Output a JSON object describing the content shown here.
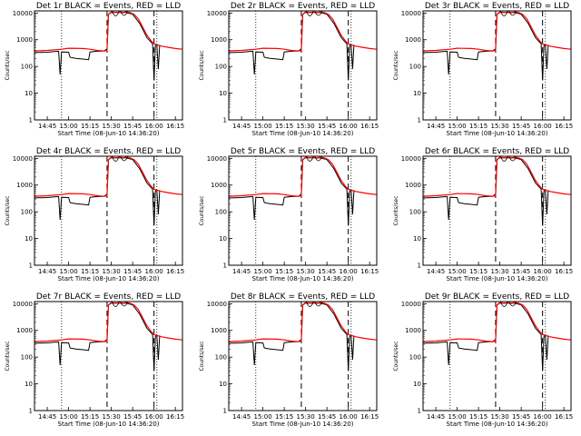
{
  "figure": {
    "layout": "3x3 grid of detector light curves"
  },
  "chart_data": [
    {
      "type": "line",
      "detector": "1r",
      "title": "Det 1r BLACK = Events, RED = LLD",
      "xlabel": "Start Time (08-Jun-10 14:36:20)",
      "ylabel": "Counts/sec",
      "x_ticks": [
        "14:45",
        "15:00",
        "15:15",
        "15:30",
        "15:45",
        "16:00",
        "16:15"
      ],
      "y_ticks": [
        "1",
        "10",
        "100",
        "1000",
        "10000"
      ],
      "y_scale": "log",
      "ylim": [
        1,
        12000
      ],
      "xlim": [
        "14:36",
        "16:20"
      ],
      "series": [
        {
          "name": "Events",
          "color": "#000000"
        },
        {
          "name": "LLD",
          "color": "#ff0000"
        }
      ]
    },
    {
      "type": "line",
      "detector": "2r",
      "title": "Det 2r BLACK = Events, RED = LLD",
      "xlabel": "Start Time (08-Jun-10 14:36:20)",
      "ylabel": "Counts/sec",
      "x_ticks": [
        "14:45",
        "15:00",
        "15:15",
        "15:30",
        "15:45",
        "16:00",
        "16:15"
      ],
      "y_ticks": [
        "1",
        "10",
        "100",
        "1000",
        "10000"
      ],
      "y_scale": "log",
      "ylim": [
        1,
        12000
      ],
      "xlim": [
        "14:36",
        "16:20"
      ],
      "series": [
        {
          "name": "Events",
          "color": "#000000"
        },
        {
          "name": "LLD",
          "color": "#ff0000"
        }
      ]
    },
    {
      "type": "line",
      "detector": "3r",
      "title": "Det 3r BLACK = Events, RED = LLD",
      "xlabel": "Start Time (08-Jun-10 14:36:20)",
      "ylabel": "Counts/sec",
      "x_ticks": [
        "14:45",
        "15:00",
        "15:15",
        "15:30",
        "15:45",
        "16:00",
        "16:15"
      ],
      "y_ticks": [
        "1",
        "10",
        "100",
        "1000",
        "10000"
      ],
      "y_scale": "log",
      "ylim": [
        1,
        12000
      ],
      "xlim": [
        "14:36",
        "16:20"
      ],
      "series": [
        {
          "name": "Events",
          "color": "#000000"
        },
        {
          "name": "LLD",
          "color": "#ff0000"
        }
      ]
    },
    {
      "type": "line",
      "detector": "4r",
      "title": "Det 4r BLACK = Events, RED = LLD",
      "xlabel": "Start Time (08-Jun-10 14:36:20)",
      "ylabel": "Counts/sec",
      "x_ticks": [
        "14:45",
        "15:00",
        "15:15",
        "15:30",
        "15:45",
        "16:00",
        "16:15"
      ],
      "y_ticks": [
        "1",
        "10",
        "100",
        "1000",
        "10000"
      ],
      "y_scale": "log",
      "ylim": [
        1,
        12000
      ],
      "xlim": [
        "14:36",
        "16:20"
      ],
      "series": [
        {
          "name": "Events",
          "color": "#000000"
        },
        {
          "name": "LLD",
          "color": "#ff0000"
        }
      ]
    },
    {
      "type": "line",
      "detector": "5r",
      "title": "Det 5r BLACK = Events, RED = LLD",
      "xlabel": "Start Time (08-Jun-10 14:36:20)",
      "ylabel": "Counts/sec",
      "x_ticks": [
        "14:45",
        "15:00",
        "15:15",
        "15:30",
        "15:45",
        "16:00",
        "16:15"
      ],
      "y_ticks": [
        "1",
        "10",
        "100",
        "1000",
        "10000"
      ],
      "y_scale": "log",
      "ylim": [
        1,
        12000
      ],
      "xlim": [
        "14:36",
        "16:20"
      ],
      "series": [
        {
          "name": "Events",
          "color": "#000000"
        },
        {
          "name": "LLD",
          "color": "#ff0000"
        }
      ]
    },
    {
      "type": "line",
      "detector": "6r",
      "title": "Det 6r BLACK = Events, RED = LLD",
      "xlabel": "Start Time (08-Jun-10 14:36:20)",
      "ylabel": "Counts/sec",
      "x_ticks": [
        "14:45",
        "15:00",
        "15:15",
        "15:30",
        "15:45",
        "16:00",
        "16:15"
      ],
      "y_ticks": [
        "1",
        "10",
        "100",
        "1000",
        "10000"
      ],
      "y_scale": "log",
      "ylim": [
        1,
        12000
      ],
      "xlim": [
        "14:36",
        "16:20"
      ],
      "series": [
        {
          "name": "Events",
          "color": "#000000"
        },
        {
          "name": "LLD",
          "color": "#ff0000"
        }
      ]
    },
    {
      "type": "line",
      "detector": "7r",
      "title": "Det 7r BLACK = Events, RED = LLD",
      "xlabel": "Start Time (08-Jun-10 14:36:20)",
      "ylabel": "Counts/sec",
      "x_ticks": [
        "14:45",
        "15:00",
        "15:15",
        "15:30",
        "15:45",
        "16:00",
        "16:15"
      ],
      "y_ticks": [
        "1",
        "10",
        "100",
        "1000",
        "10000"
      ],
      "y_scale": "log",
      "ylim": [
        1,
        12000
      ],
      "xlim": [
        "14:36",
        "16:20"
      ],
      "series": [
        {
          "name": "Events",
          "color": "#000000"
        },
        {
          "name": "LLD",
          "color": "#ff0000"
        }
      ]
    },
    {
      "type": "line",
      "detector": "8r",
      "title": "Det 8r BLACK = Events, RED = LLD",
      "xlabel": "Start Time (08-Jun-10 14:36:20)",
      "ylabel": "Counts/sec",
      "x_ticks": [
        "14:45",
        "15:00",
        "15:15",
        "15:30",
        "15:45",
        "16:00",
        "16:15"
      ],
      "y_ticks": [
        "1",
        "10",
        "100",
        "1000",
        "10000"
      ],
      "y_scale": "log",
      "ylim": [
        1,
        12000
      ],
      "xlim": [
        "14:36",
        "16:20"
      ],
      "series": [
        {
          "name": "Events",
          "color": "#000000"
        },
        {
          "name": "LLD",
          "color": "#ff0000"
        }
      ]
    },
    {
      "type": "line",
      "detector": "9r",
      "title": "Det 9r BLACK = Events, RED = LLD",
      "xlabel": "Start Time (08-Jun-10 14:36:20)",
      "ylabel": "Counts/sec",
      "x_ticks": [
        "14:45",
        "15:00",
        "15:15",
        "15:30",
        "15:45",
        "16:00",
        "16:15"
      ],
      "y_ticks": [
        "1",
        "10",
        "100",
        "1000",
        "10000"
      ],
      "y_scale": "log",
      "ylim": [
        1,
        12000
      ],
      "xlim": [
        "14:36",
        "16:20"
      ],
      "series": [
        {
          "name": "Events",
          "color": "#000000"
        },
        {
          "name": "LLD",
          "color": "#ff0000"
        }
      ]
    }
  ],
  "markers": {
    "dotted_lines_at": [
      "14:55",
      "16:02"
    ],
    "dashed_lines_at": [
      "15:27",
      "16:00"
    ]
  },
  "curves": {
    "lld": {
      "time": [
        "14:36",
        "14:45",
        "14:55",
        "15:00",
        "15:10",
        "15:15",
        "15:20",
        "15:25",
        "15:27",
        "15:28",
        "15:30",
        "15:33",
        "15:36",
        "15:38",
        "15:40",
        "15:43",
        "15:46",
        "15:49",
        "15:52",
        "15:55",
        "15:58",
        "16:00",
        "16:02",
        "16:05",
        "16:10",
        "16:15",
        "16:20"
      ],
      "counts": [
        380,
        400,
        440,
        480,
        470,
        440,
        400,
        380,
        400,
        9000,
        11000,
        10500,
        10800,
        10200,
        11000,
        10500,
        9000,
        6000,
        3000,
        1500,
        900,
        700,
        650,
        580,
        520,
        470,
        440
      ]
    },
    "events": {
      "time": [
        "14:36",
        "14:45",
        "14:50",
        "14:53",
        "14:54",
        "14:55",
        "15:00",
        "15:01",
        "15:05",
        "15:10",
        "15:14",
        "15:15",
        "15:20",
        "15:25",
        "15:26",
        "15:27",
        "15:28",
        "15:30",
        "15:40",
        "15:45",
        "15:50",
        "15:55",
        "15:58",
        "15:59",
        "16:00",
        "16:01",
        "16:02",
        "16:03",
        "16:04"
      ],
      "counts": [
        330,
        340,
        360,
        370,
        50,
        350,
        340,
        220,
        200,
        190,
        180,
        350,
        370,
        380,
        420,
        450,
        9000,
        10500,
        10500,
        9000,
        4000,
        1200,
        800,
        700,
        30,
        600,
        650,
        80,
        650
      ]
    },
    "notches": [
      {
        "time": "15:33",
        "bottom_counts": 7000
      },
      {
        "time": "15:39",
        "bottom_counts": 7500
      }
    ]
  }
}
